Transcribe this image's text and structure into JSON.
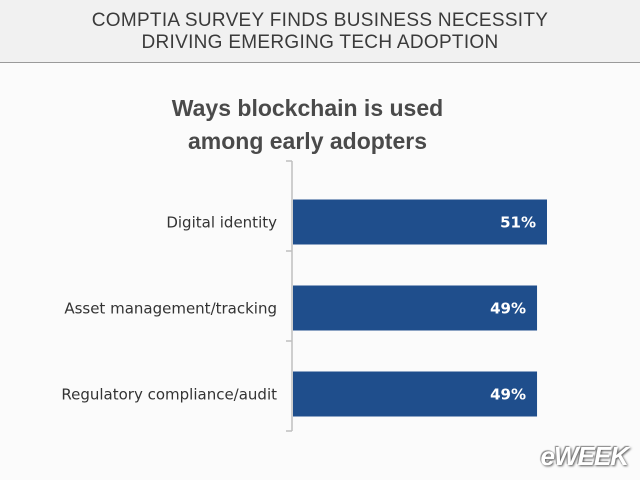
{
  "header": {
    "title": "COMPTIA SURVEY FINDS BUSINESS NECESSITY DRIVING EMERGING TECH ADOPTION"
  },
  "chart_data": {
    "type": "bar",
    "orientation": "horizontal",
    "title": "Ways blockchain is used among early adopters",
    "categories": [
      "Digital identity",
      "Asset management/tracking",
      "Regulatory compliance/audit"
    ],
    "values": [
      51,
      49,
      49
    ],
    "value_labels": [
      "51%",
      "49%",
      "49%"
    ],
    "color": "#1f4e8c"
  },
  "logo": "eWEEK"
}
